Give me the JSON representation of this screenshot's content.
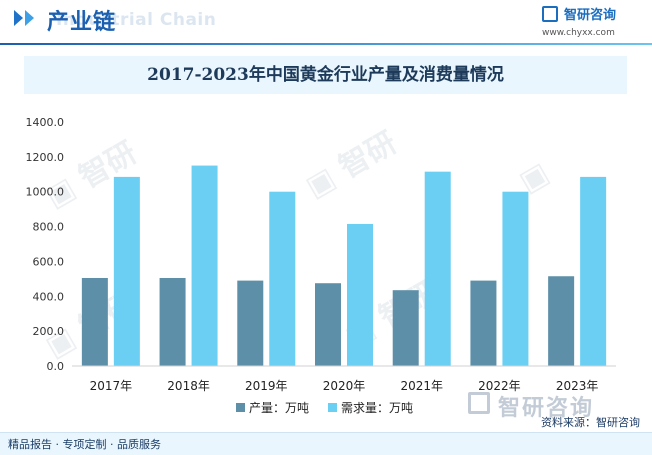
{
  "header": {
    "title": "产业链",
    "watermark_text": "Industrial Chain",
    "logo_text": "智研咨询",
    "logo_url": "www.chyxx.com"
  },
  "footer": {
    "left_text": "精品报告 · 专项定制 · 品质服务",
    "source_text": "资料来源：智研咨询",
    "watermark_logo": "智研咨询"
  },
  "colors": {
    "production": "#5e8fa8",
    "demand": "#6acff2",
    "accent": "#1b5fb0"
  },
  "chart_data": {
    "type": "bar",
    "title": "2017-2023年中国黄金行业产量及消费量情况",
    "categories": [
      "2017年",
      "2018年",
      "2019年",
      "2020年",
      "2021年",
      "2022年",
      "2023年"
    ],
    "series": [
      {
        "name": "产量：万吨",
        "values": [
          505,
          505,
          490,
          475,
          435,
          490,
          515
        ]
      },
      {
        "name": "需求量：万吨",
        "values": [
          1085,
          1150,
          1000,
          815,
          1115,
          1000,
          1085
        ]
      }
    ],
    "ylim": [
      0,
      1400
    ],
    "yticks": [
      "0.0",
      "200.0",
      "400.0",
      "600.0",
      "800.0",
      "1000.0",
      "1200.0",
      "1400.0"
    ],
    "grid": false,
    "legend": "bottom"
  }
}
